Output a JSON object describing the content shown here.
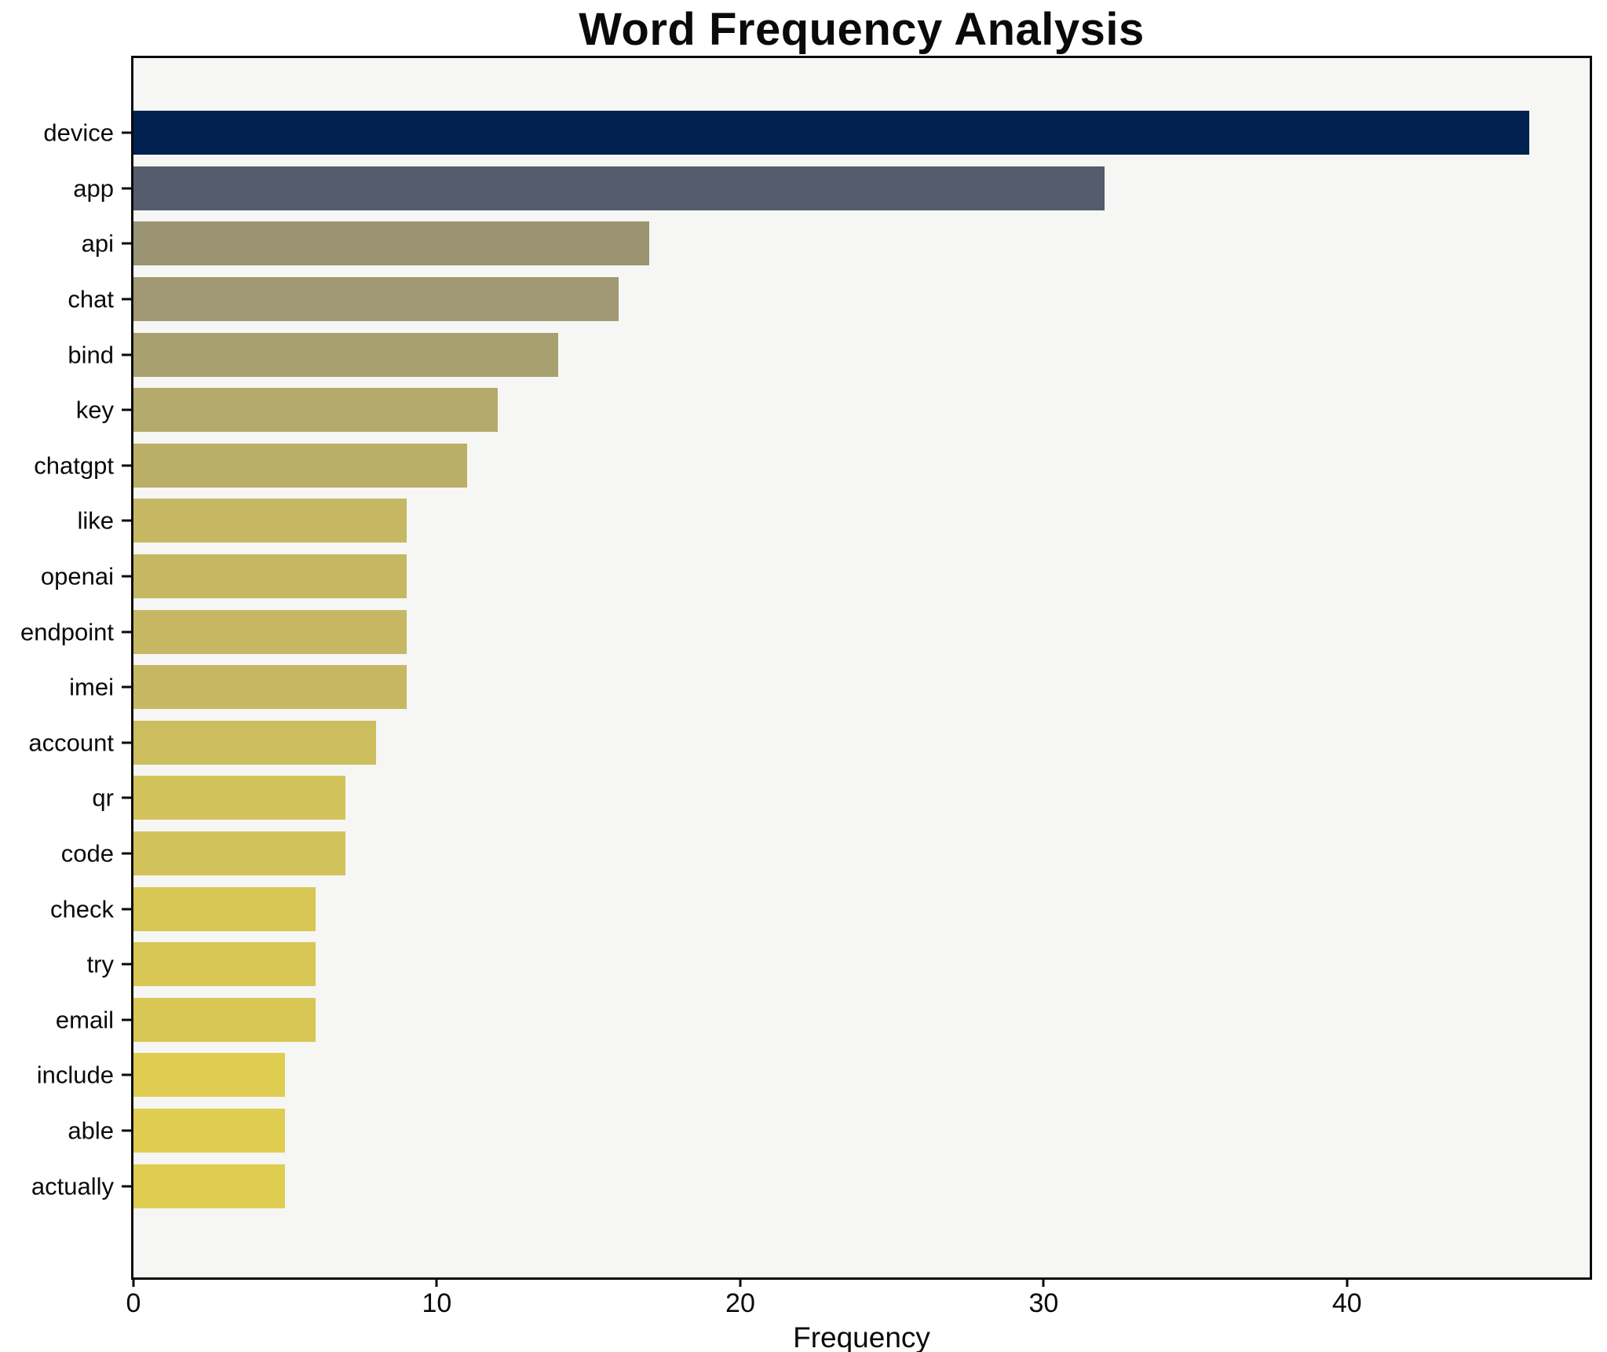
{
  "chart_data": {
    "type": "bar",
    "orientation": "horizontal",
    "title": "Word Frequency Analysis",
    "xlabel": "Frequency",
    "ylabel": "",
    "categories": [
      "device",
      "app",
      "api",
      "chat",
      "bind",
      "key",
      "chatgpt",
      "like",
      "openai",
      "endpoint",
      "imei",
      "account",
      "qr",
      "code",
      "check",
      "try",
      "email",
      "include",
      "able",
      "actually"
    ],
    "values": [
      46,
      32,
      17,
      16,
      14,
      12,
      11,
      9,
      9,
      9,
      9,
      8,
      7,
      7,
      6,
      6,
      6,
      5,
      5,
      5
    ],
    "bar_colors": [
      "#012250",
      "#545c6e",
      "#9a9472",
      "#9f9873",
      "#a9a06f",
      "#b4aa6c",
      "#bbaf68",
      "#c6b863",
      "#c6b863",
      "#c6b863",
      "#c6b863",
      "#ccbd5f",
      "#d2c25b",
      "#d2c25b",
      "#d8c755",
      "#d8c755",
      "#d8c755",
      "#dfcd51",
      "#dfcd51",
      "#dfcd51"
    ],
    "colormap": "cividis",
    "xticks": [
      0,
      10,
      20,
      30,
      40
    ],
    "xlim": [
      0,
      48
    ],
    "grid": false,
    "legend": "none",
    "plot_background": "#f6f6f4",
    "figure_background": "#ffffff",
    "spine_color": "#0a0a0a",
    "text_color": "#0a0a0a"
  }
}
